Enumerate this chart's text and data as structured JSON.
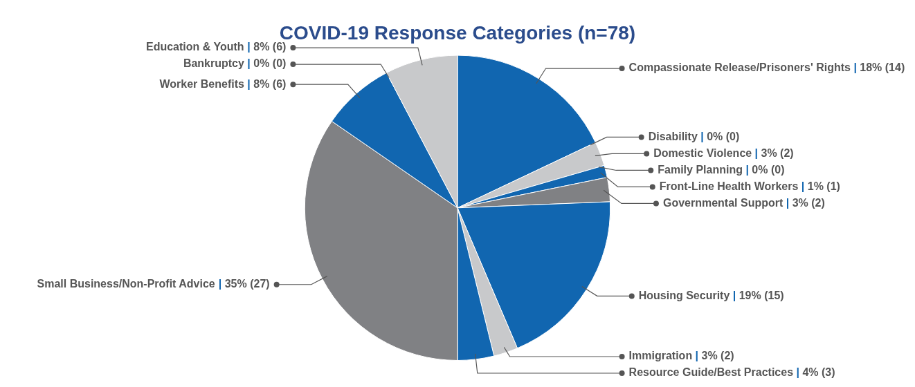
{
  "chart_data": {
    "type": "pie",
    "title": "COVID-19 Response Categories (n=78)",
    "categories": [
      "Compassionate Release/Prisoners' Rights",
      "Disability",
      "Domestic Violence",
      "Family Planning",
      "Front-Line Health Workers",
      "Governmental Support",
      "Housing Security",
      "Immigration",
      "Resource Guide/Best Practices",
      "Small Business/Non-Profit Advice",
      "Worker Benefits",
      "Bankruptcy",
      "Education & Youth"
    ],
    "values": [
      14,
      0,
      2,
      0,
      1,
      2,
      15,
      2,
      3,
      27,
      6,
      0,
      6
    ],
    "colors": [
      "#1166b0",
      "#808184",
      "#c8c9cb",
      "#c8c9cb",
      "#1166b0",
      "#808184",
      "#1166b0",
      "#c8c9cb",
      "#1166b0",
      "#808184",
      "#1166b0",
      "#808184",
      "#c8c9cb"
    ],
    "value_labels": [
      "| 18% (14)",
      "| 0% (0)",
      "| 3% (2)",
      "| 0% (0)",
      "| 1% (1)",
      "| 3% (2)",
      "| 19% (15)",
      "| 3% (2)",
      "| 4% (3)",
      "| 35% (27)",
      "| 8% (6)",
      "| 0% (0)",
      "| 8% (6)"
    ]
  }
}
